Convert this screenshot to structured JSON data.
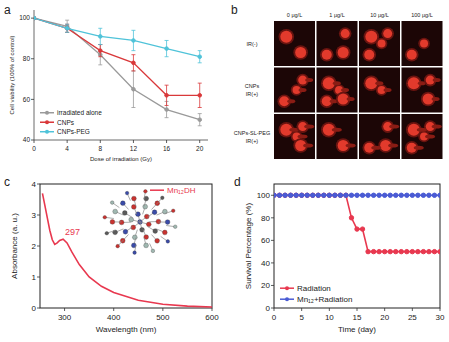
{
  "chart_data": [
    {
      "panel": "a",
      "type": "line",
      "x_label": "Dose of irradiation (Gy)",
      "y_label": "Cell viability (100% of control)",
      "x": [
        0,
        4,
        8,
        12,
        16,
        20
      ],
      "xlim": [
        0,
        21
      ],
      "xticks": [
        0,
        4,
        8,
        12,
        16,
        20
      ],
      "ylim": [
        40,
        104
      ],
      "yticks": [
        40,
        60,
        80,
        100
      ],
      "marker": "circle",
      "legend": "bottom-left",
      "series": [
        {
          "name": "irradiated alone",
          "color": "#9a9a9a",
          "values": [
            100,
            96,
            82,
            65,
            55,
            50
          ],
          "errors": [
            0,
            3,
            5,
            9,
            4,
            3
          ]
        },
        {
          "name": "CNPs",
          "color": "#d9383a",
          "values": [
            100,
            95,
            84,
            78,
            62,
            62
          ],
          "errors": [
            0,
            2,
            3,
            4,
            5,
            6
          ]
        },
        {
          "name": "CNPs-PEG",
          "color": "#4fc3d9",
          "values": [
            100,
            95,
            91,
            89,
            85,
            81
          ],
          "errors": [
            0,
            2,
            4,
            5,
            4,
            3
          ]
        }
      ]
    },
    {
      "panel": "b",
      "type": "image_grid",
      "columns": [
        "0 μg/L",
        "1 μg/L",
        "10 μg/L",
        "100 μg/L"
      ],
      "rows": [
        [
          "IR(-)"
        ],
        [
          "CNPs",
          "IR(+)"
        ],
        [
          "CNPs-SL-PEG",
          "IR(+)"
        ]
      ]
    },
    {
      "panel": "c",
      "type": "line",
      "x_label": "Wavelength (nm)",
      "y_label": "Absorbance (a. u.)",
      "x": [
        255,
        260,
        265,
        270,
        275,
        280,
        285,
        290,
        297,
        305,
        315,
        330,
        350,
        375,
        400,
        450,
        500,
        550,
        600
      ],
      "xlim": [
        250,
        600
      ],
      "xticks": [
        300,
        400,
        500,
        600
      ],
      "ylim": [
        0,
        4
      ],
      "yticks": [
        0,
        1,
        2,
        3,
        4
      ],
      "legend": "top-right",
      "annotations": [
        {
          "text": "297",
          "x": 297
        }
      ],
      "series": [
        {
          "name": "Mn₁₂DH",
          "color": "#e8384f",
          "values": [
            3.7,
            3.3,
            2.9,
            2.5,
            2.2,
            2.05,
            2.1,
            2.18,
            2.22,
            2.1,
            1.8,
            1.4,
            1.0,
            0.7,
            0.5,
            0.25,
            0.12,
            0.06,
            0.03
          ]
        }
      ]
    },
    {
      "panel": "d",
      "type": "line",
      "x_label": "Time (day)",
      "y_label": "Survival Percentage (%)",
      "x": [
        0,
        1,
        2,
        3,
        4,
        5,
        6,
        7,
        8,
        9,
        10,
        11,
        12,
        13,
        14,
        15,
        16,
        17,
        18,
        19,
        20,
        21,
        22,
        23,
        24,
        25,
        26,
        27,
        28,
        29,
        30
      ],
      "xlim": [
        0,
        30
      ],
      "xticks": [
        0,
        5,
        10,
        15,
        20,
        25,
        30
      ],
      "ylim": [
        0,
        110
      ],
      "yticks": [
        0,
        20,
        40,
        60,
        80,
        100
      ],
      "legend": "bottom-left",
      "marker": "circle",
      "series": [
        {
          "name": "Radiation",
          "color": "#e8384f",
          "values": [
            100,
            100,
            100,
            100,
            100,
            100,
            100,
            100,
            100,
            100,
            100,
            100,
            100,
            100,
            80,
            70,
            70,
            50,
            50,
            50,
            50,
            50,
            50,
            50,
            50,
            50,
            50,
            50,
            50,
            50,
            50
          ]
        },
        {
          "name": "Mn₁₂+Radiation",
          "color": "#4a5bd4",
          "values": [
            100,
            100,
            100,
            100,
            100,
            100,
            100,
            100,
            100,
            100,
            100,
            100,
            100,
            100,
            100,
            100,
            100,
            100,
            100,
            100,
            100,
            100,
            100,
            100,
            100,
            100,
            100,
            100,
            100,
            100,
            100
          ]
        }
      ]
    }
  ]
}
